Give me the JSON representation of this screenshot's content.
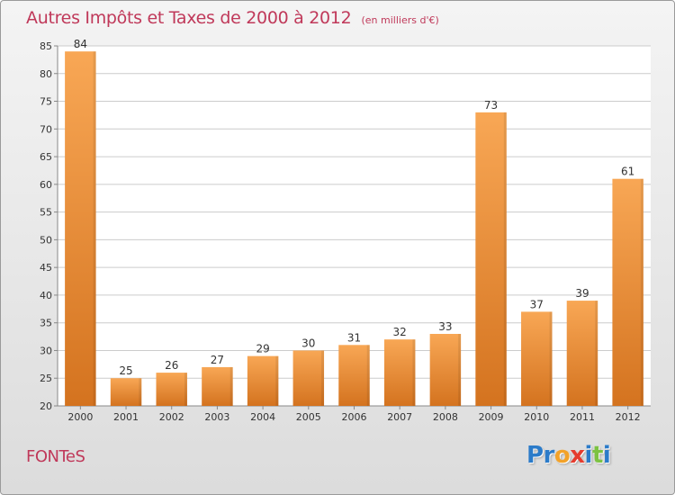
{
  "header": {
    "title": "Autres Impôts et Taxes de 2000 à 2012",
    "subtitle": "(en milliers d'€)"
  },
  "footer": {
    "location": "FONTeS",
    "brand": "Proxiti",
    "brand_letters": [
      {
        "ch": "P",
        "color": "#2b7bc9"
      },
      {
        "ch": "r",
        "color": "#2b7bc9"
      },
      {
        "ch": "o",
        "color": "#f2a22a"
      },
      {
        "ch": "x",
        "color": "#e53c2e"
      },
      {
        "ch": "i",
        "color": "#2b7bc9"
      },
      {
        "ch": "t",
        "color": "#7cc242"
      },
      {
        "ch": "i",
        "color": "#2b7bc9"
      }
    ]
  },
  "colors": {
    "title": "#c0395a",
    "bar_light": "#f8a755",
    "bar_dark": "#d4731f",
    "grid": "#cccccc"
  },
  "chart_data": {
    "type": "bar",
    "categories": [
      "2000",
      "2001",
      "2002",
      "2003",
      "2004",
      "2005",
      "2006",
      "2007",
      "2008",
      "2009",
      "2010",
      "2011",
      "2012"
    ],
    "values": [
      84,
      25,
      26,
      27,
      29,
      30,
      31,
      32,
      33,
      73,
      37,
      39,
      61
    ],
    "ylim": [
      20,
      85
    ],
    "yticks": [
      20,
      25,
      30,
      35,
      40,
      45,
      50,
      55,
      60,
      65,
      70,
      75,
      80,
      85
    ],
    "grid": true,
    "data_labels": true
  }
}
